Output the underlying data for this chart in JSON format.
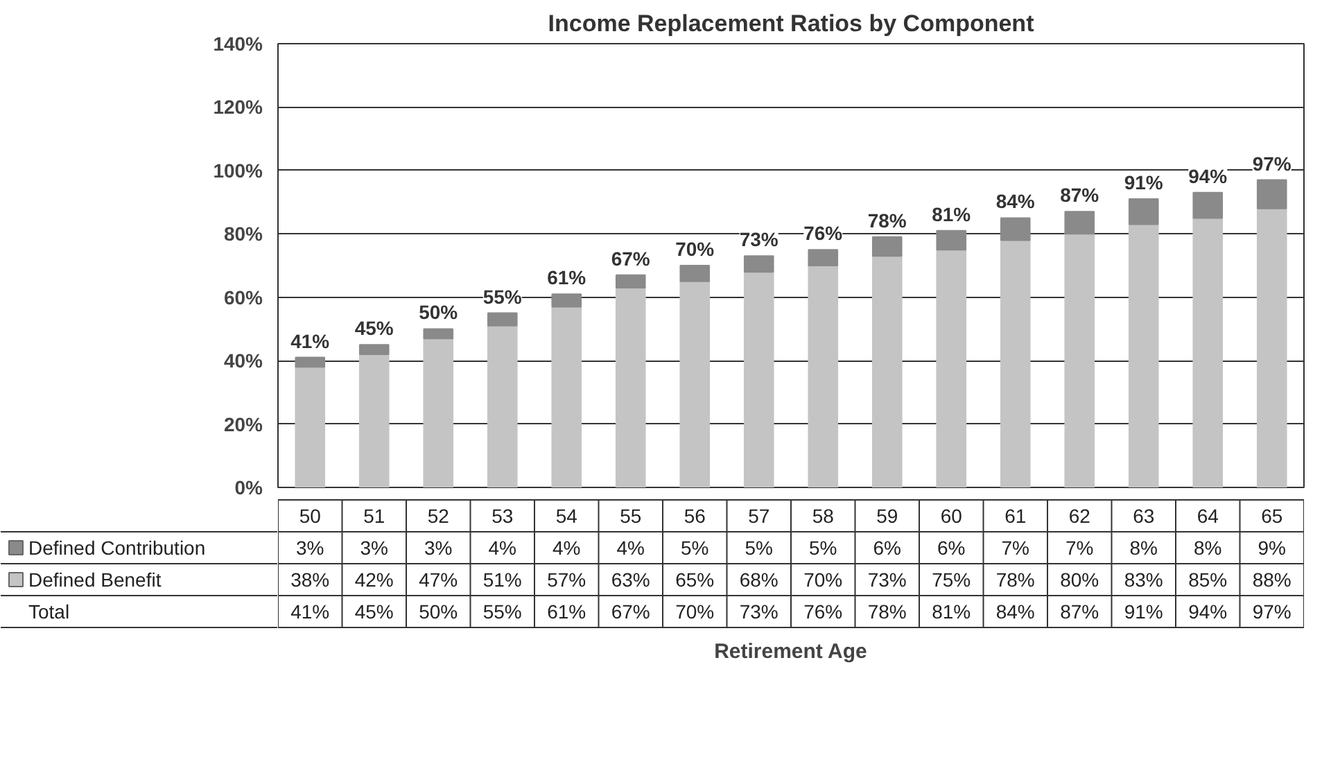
{
  "chart_data": {
    "type": "bar",
    "title": "Income Replacement Ratios by Component",
    "categories": [
      "50",
      "51",
      "52",
      "53",
      "54",
      "55",
      "56",
      "57",
      "58",
      "59",
      "60",
      "61",
      "62",
      "63",
      "64",
      "65"
    ],
    "stacked": true,
    "series": [
      {
        "name": "Defined Benefit",
        "color": "#c4c4c4",
        "values": [
          38,
          42,
          47,
          51,
          57,
          63,
          65,
          68,
          70,
          73,
          75,
          78,
          80,
          83,
          85,
          88
        ],
        "value_labels": [
          "38%",
          "42%",
          "47%",
          "51%",
          "57%",
          "63%",
          "65%",
          "68%",
          "70%",
          "73%",
          "75%",
          "78%",
          "80%",
          "83%",
          "85%",
          "88%"
        ]
      },
      {
        "name": "Defined Contribution",
        "color": "#8a8a8a",
        "values": [
          3,
          3,
          3,
          4,
          4,
          4,
          5,
          5,
          5,
          6,
          6,
          7,
          7,
          8,
          8,
          9
        ],
        "value_labels": [
          "3%",
          "3%",
          "3%",
          "4%",
          "4%",
          "4%",
          "5%",
          "5%",
          "5%",
          "6%",
          "6%",
          "7%",
          "7%",
          "8%",
          "8%",
          "9%"
        ]
      }
    ],
    "annotations": [
      "Total",
      "Retirement Age"
    ],
    "totals": [
      "41%",
      "45%",
      "50%",
      "55%",
      "61%",
      "67%",
      "70%",
      "73%",
      "76%",
      "78%",
      "81%",
      "84%",
      "87%",
      "91%",
      "94%",
      "97%"
    ],
    "ylim": [
      0,
      140
    ],
    "yticks": [
      {
        "value": 0,
        "label": "0%"
      },
      {
        "value": 20,
        "label": "20%"
      },
      {
        "value": 40,
        "label": "40%"
      },
      {
        "value": 60,
        "label": "60%"
      },
      {
        "value": 80,
        "label": "80%"
      },
      {
        "value": 100,
        "label": "100%"
      },
      {
        "value": 120,
        "label": "120%"
      },
      {
        "value": 140,
        "label": "140%"
      }
    ],
    "grid": "y",
    "legend": "bottom"
  }
}
